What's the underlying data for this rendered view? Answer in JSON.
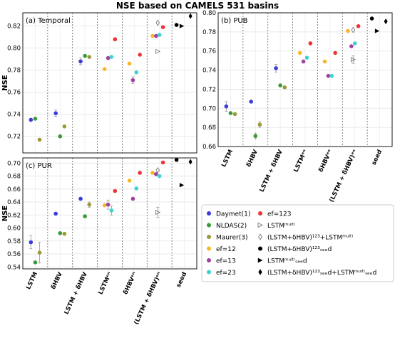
{
  "figure": {
    "title": "NSE based on CAMELS 531 basins"
  },
  "categories": [
    "LSTM",
    "δHBV",
    "LSTM + δHBV",
    "LSTMᵉⁿ",
    "δHBVᵉⁿ",
    "(LSTM + δHBV)ᵉⁿ",
    "seed"
  ],
  "legend": [
    {
      "label": "Daymet(1)",
      "marker": "circle",
      "color": "#3b3bdd"
    },
    {
      "label": "NLDAS(2)",
      "marker": "circle",
      "color": "#3a9a3a"
    },
    {
      "label": "Maurer(3)",
      "marker": "circle",
      "color": "#9a9a3a"
    },
    {
      "label": "ef=12",
      "marker": "circle",
      "color": "#f5b829"
    },
    {
      "label": "ef=13",
      "marker": "circle",
      "color": "#a040a0"
    },
    {
      "label": "ef=23",
      "marker": "circle",
      "color": "#3ed2d2"
    },
    {
      "label": "ef=123",
      "marker": "circle",
      "color": "#ee3333"
    },
    {
      "label": "LSTMᵐᵘˡᵗⁱ",
      "marker": "tri-right-open",
      "color": "#777777"
    },
    {
      "label": "(LSTM+δHBV)¹²³+LSTMᵐᵘˡᵗⁱ",
      "marker": "diamond-open",
      "color": "#777777"
    },
    {
      "label": "(LSTM+δHBV)¹²³ₛₑₑd",
      "marker": "circle",
      "color": "#000000"
    },
    {
      "label": "LSTMᵐᵘˡᵗⁱₛₑₑd",
      "marker": "tri-right",
      "color": "#000000"
    },
    {
      "label": "(LSTM+δHBV)¹²³ₛₑₑd+LSTMᵐᵘˡᵗⁱₛₑₑd",
      "marker": "diamond",
      "color": "#000000"
    }
  ],
  "chart_data": [
    {
      "type": "scatter",
      "title": "(a) Temporal",
      "ylabel": "NSE",
      "ylim": [
        0.705,
        0.832
      ],
      "yticks": [
        "0.72",
        "0.74",
        "0.76",
        "0.78",
        "0.80",
        "0.82"
      ],
      "ytick_values": [
        0.72,
        0.74,
        0.76,
        0.78,
        0.8,
        0.82
      ],
      "points": [
        {
          "cat": 0,
          "off": -0.25,
          "y": 0.735,
          "series": "Daymet(1)"
        },
        {
          "cat": 0,
          "off": 0.0,
          "y": 0.736,
          "series": "NLDAS(2)"
        },
        {
          "cat": 0,
          "off": 0.25,
          "y": 0.717,
          "series": "Maurer(3)"
        },
        {
          "cat": 1,
          "off": -0.25,
          "y": 0.741,
          "err": 0.003,
          "series": "Daymet(1)"
        },
        {
          "cat": 1,
          "off": 0.0,
          "y": 0.72,
          "series": "NLDAS(2)"
        },
        {
          "cat": 1,
          "off": 0.25,
          "y": 0.729,
          "series": "Maurer(3)"
        },
        {
          "cat": 2,
          "off": -0.25,
          "y": 0.788,
          "err": 0.003,
          "series": "Daymet(1)"
        },
        {
          "cat": 2,
          "off": 0.0,
          "y": 0.793,
          "series": "NLDAS(2)"
        },
        {
          "cat": 2,
          "off": 0.25,
          "y": 0.792,
          "series": "Maurer(3)"
        },
        {
          "cat": 3,
          "off": -0.3,
          "y": 0.781,
          "series": "ef=12"
        },
        {
          "cat": 3,
          "off": -0.1,
          "y": 0.791,
          "series": "ef=13"
        },
        {
          "cat": 3,
          "off": 0.1,
          "y": 0.792,
          "series": "ef=23"
        },
        {
          "cat": 3,
          "off": 0.3,
          "y": 0.808,
          "series": "ef=123"
        },
        {
          "cat": 4,
          "off": -0.3,
          "y": 0.786,
          "series": "ef=12"
        },
        {
          "cat": 4,
          "off": -0.1,
          "y": 0.771,
          "err": 0.003,
          "series": "ef=13"
        },
        {
          "cat": 4,
          "off": 0.1,
          "y": 0.778,
          "series": "ef=23"
        },
        {
          "cat": 4,
          "off": 0.3,
          "y": 0.794,
          "series": "ef=123"
        },
        {
          "cat": 5,
          "off": -0.4,
          "y": 0.811,
          "series": "ef=12"
        },
        {
          "cat": 5,
          "off": -0.2,
          "y": 0.811,
          "series": "ef=13"
        },
        {
          "cat": 5,
          "off": 0.0,
          "y": 0.812,
          "series": "ef=23"
        },
        {
          "cat": 5,
          "off": 0.2,
          "y": 0.819,
          "series": "ef=123"
        },
        {
          "cat": 5,
          "off": -0.1,
          "y": 0.797,
          "series": "LSTMᵐᵘˡᵗⁱ"
        },
        {
          "cat": 5,
          "off": -0.1,
          "y": 0.823,
          "series": "(LSTM+δHBV)¹²³+LSTMᵐᵘˡᵗⁱ"
        },
        {
          "cat": 6,
          "off": -0.45,
          "y": 0.821,
          "series": "(LSTM+δHBV)¹²³ₛₑₑd"
        },
        {
          "cat": 6,
          "off": -0.15,
          "y": 0.82,
          "series": "LSTMᵐᵘˡᵗⁱₛₑₑd"
        },
        {
          "cat": 6,
          "off": 0.35,
          "y": 0.829,
          "series": "(LSTM+δHBV)¹²³ₛₑₑd+LSTMᵐᵘˡᵗⁱₛₑₑd"
        }
      ]
    },
    {
      "type": "scatter",
      "title": "(b) PUB",
      "ylabel": "",
      "ylim": [
        0.66,
        0.8
      ],
      "yticks": [
        "0.66",
        "0.68",
        "0.70",
        "0.72",
        "0.74",
        "0.76",
        "0.78",
        "0.80"
      ],
      "ytick_values": [
        0.66,
        0.68,
        0.7,
        0.72,
        0.74,
        0.76,
        0.78,
        0.8
      ],
      "points": [
        {
          "cat": 0,
          "off": -0.25,
          "y": 0.702,
          "err": 0.005,
          "series": "Daymet(1)"
        },
        {
          "cat": 0,
          "off": 0.0,
          "y": 0.695,
          "series": "NLDAS(2)"
        },
        {
          "cat": 0,
          "off": 0.25,
          "y": 0.694,
          "series": "Maurer(3)"
        },
        {
          "cat": 1,
          "off": -0.25,
          "y": 0.707,
          "series": "Daymet(1)"
        },
        {
          "cat": 1,
          "off": 0.0,
          "y": 0.671,
          "err": 0.003,
          "series": "NLDAS(2)"
        },
        {
          "cat": 1,
          "off": 0.25,
          "y": 0.683,
          "err": 0.003,
          "series": "Maurer(3)"
        },
        {
          "cat": 2,
          "off": -0.25,
          "y": 0.742,
          "err": 0.004,
          "series": "Daymet(1)"
        },
        {
          "cat": 2,
          "off": 0.0,
          "y": 0.724,
          "series": "NLDAS(2)"
        },
        {
          "cat": 2,
          "off": 0.25,
          "y": 0.722,
          "series": "Maurer(3)"
        },
        {
          "cat": 3,
          "off": -0.3,
          "y": 0.758,
          "series": "ef=12"
        },
        {
          "cat": 3,
          "off": -0.1,
          "y": 0.749,
          "series": "ef=13"
        },
        {
          "cat": 3,
          "off": 0.1,
          "y": 0.753,
          "series": "ef=23"
        },
        {
          "cat": 3,
          "off": 0.3,
          "y": 0.768,
          "series": "ef=123"
        },
        {
          "cat": 4,
          "off": -0.3,
          "y": 0.749,
          "series": "ef=12"
        },
        {
          "cat": 4,
          "off": -0.1,
          "y": 0.734,
          "series": "ef=13"
        },
        {
          "cat": 4,
          "off": 0.1,
          "y": 0.734,
          "series": "ef=23"
        },
        {
          "cat": 4,
          "off": 0.3,
          "y": 0.758,
          "series": "ef=123"
        },
        {
          "cat": 5,
          "off": -0.4,
          "y": 0.781,
          "series": "ef=12"
        },
        {
          "cat": 5,
          "off": -0.2,
          "y": 0.765,
          "series": "ef=13"
        },
        {
          "cat": 5,
          "off": 0.0,
          "y": 0.768,
          "series": "ef=23"
        },
        {
          "cat": 5,
          "off": 0.2,
          "y": 0.786,
          "series": "ef=123"
        },
        {
          "cat": 5,
          "off": -0.1,
          "y": 0.751,
          "err": 0.004,
          "series": "LSTMᵐᵘˡᵗⁱ"
        },
        {
          "cat": 5,
          "off": -0.1,
          "y": 0.782,
          "series": "(LSTM+δHBV)¹²³+LSTMᵐᵘˡᵗⁱ"
        },
        {
          "cat": 6,
          "off": -0.45,
          "y": 0.794,
          "series": "(LSTM+δHBV)¹²³ₛₑₑd"
        },
        {
          "cat": 6,
          "off": -0.15,
          "y": 0.781,
          "series": "LSTMᵐᵘˡᵗⁱₛₑₑd"
        },
        {
          "cat": 6,
          "off": 0.35,
          "y": 0.791,
          "series": "(LSTM+δHBV)¹²³ₛₑₑd+LSTMᵐᵘˡᵗⁱₛₑₑd"
        }
      ]
    },
    {
      "type": "scatter",
      "title": "(c) PUR",
      "ylabel": "NSE",
      "ylim": [
        0.537,
        0.708
      ],
      "yticks": [
        "0.54",
        "0.56",
        "0.58",
        "0.60",
        "0.62",
        "0.64",
        "0.66",
        "0.68",
        "0.70"
      ],
      "ytick_values": [
        0.54,
        0.56,
        0.58,
        0.6,
        0.62,
        0.64,
        0.66,
        0.68,
        0.7
      ],
      "points": [
        {
          "cat": 0,
          "off": -0.25,
          "y": 0.578,
          "err": 0.01,
          "series": "Daymet(1)"
        },
        {
          "cat": 0,
          "off": 0.0,
          "y": 0.547,
          "series": "NLDAS(2)"
        },
        {
          "cat": 0,
          "off": 0.25,
          "y": 0.562,
          "err": 0.016,
          "series": "Maurer(3)"
        },
        {
          "cat": 1,
          "off": -0.25,
          "y": 0.622,
          "series": "Daymet(1)"
        },
        {
          "cat": 1,
          "off": 0.0,
          "y": 0.592,
          "series": "NLDAS(2)"
        },
        {
          "cat": 1,
          "off": 0.25,
          "y": 0.591,
          "series": "Maurer(3)"
        },
        {
          "cat": 2,
          "off": -0.25,
          "y": 0.645,
          "series": "Daymet(1)"
        },
        {
          "cat": 2,
          "off": 0.0,
          "y": 0.618,
          "series": "NLDAS(2)"
        },
        {
          "cat": 2,
          "off": 0.25,
          "y": 0.636,
          "err": 0.004,
          "series": "Maurer(3)"
        },
        {
          "cat": 3,
          "off": -0.3,
          "y": 0.635,
          "series": "ef=12"
        },
        {
          "cat": 3,
          "off": -0.1,
          "y": 0.636,
          "err": 0.007,
          "series": "ef=13"
        },
        {
          "cat": 3,
          "off": 0.1,
          "y": 0.627,
          "err": 0.007,
          "series": "ef=23"
        },
        {
          "cat": 3,
          "off": 0.3,
          "y": 0.657,
          "series": "ef=123"
        },
        {
          "cat": 4,
          "off": -0.3,
          "y": 0.673,
          "series": "ef=12"
        },
        {
          "cat": 4,
          "off": -0.1,
          "y": 0.645,
          "series": "ef=13"
        },
        {
          "cat": 4,
          "off": 0.1,
          "y": 0.661,
          "series": "ef=23"
        },
        {
          "cat": 4,
          "off": 0.3,
          "y": 0.685,
          "series": "ef=123"
        },
        {
          "cat": 5,
          "off": -0.4,
          "y": 0.685,
          "series": "ef=12"
        },
        {
          "cat": 5,
          "off": -0.2,
          "y": 0.683,
          "series": "ef=13"
        },
        {
          "cat": 5,
          "off": 0.0,
          "y": 0.68,
          "series": "ef=23"
        },
        {
          "cat": 5,
          "off": 0.2,
          "y": 0.701,
          "series": "ef=123"
        },
        {
          "cat": 5,
          "off": -0.1,
          "y": 0.624,
          "err": 0.008,
          "series": "LSTMᵐᵘˡᵗⁱ"
        },
        {
          "cat": 5,
          "off": -0.1,
          "y": 0.689,
          "series": "(LSTM+δHBV)¹²³+LSTMᵐᵘˡᵗⁱ"
        },
        {
          "cat": 6,
          "off": -0.45,
          "y": 0.705,
          "series": "(LSTM+δHBV)¹²³ₛₑₑd"
        },
        {
          "cat": 6,
          "off": -0.15,
          "y": 0.666,
          "series": "LSTMᵐᵘˡᵗⁱₛₑₑd"
        },
        {
          "cat": 6,
          "off": 0.35,
          "y": 0.702,
          "series": "(LSTM+δHBV)¹²³ₛₑₑd+LSTMᵐᵘˡᵗⁱₛₑₑd"
        }
      ]
    }
  ]
}
